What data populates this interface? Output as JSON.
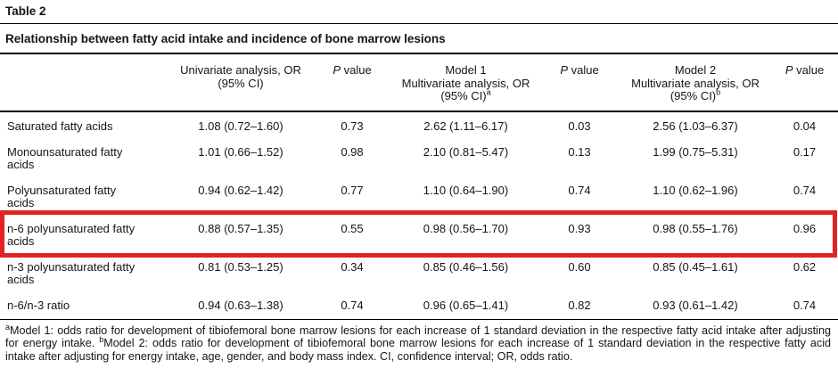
{
  "page": {
    "table_label": "Table 2",
    "title": "Relationship between fatty acid intake and incidence of bone marrow lesions"
  },
  "table": {
    "highlight_color": "#e32222",
    "columns": [
      {
        "type": "label",
        "name": "column-header-rowlabel",
        "lines": []
      },
      {
        "type": "multiline",
        "name": "column-header-univariate",
        "lines": [
          "Univariate analysis, OR",
          "(95% CI)"
        ]
      },
      {
        "type": "pvalue",
        "name": "column-header-pvalue-1",
        "italic": "P",
        "text": " value"
      },
      {
        "type": "multiline",
        "name": "column-header-model1",
        "lines": [
          "Model 1",
          "Multivariate analysis, OR",
          "(95% CI)"
        ],
        "sup": "a"
      },
      {
        "type": "pvalue",
        "name": "column-header-pvalue-2",
        "italic": "P",
        "text": " value"
      },
      {
        "type": "multiline",
        "name": "column-header-model2",
        "lines": [
          "Model 2",
          "Multivariate analysis, OR",
          "(95% CI)"
        ],
        "sup": "b"
      },
      {
        "type": "pvalue",
        "name": "column-header-pvalue-3",
        "italic": "P",
        "text": " value"
      }
    ],
    "rows": [
      {
        "label": "Saturated fatty acids",
        "values": [
          "1.08 (0.72–1.60)",
          "0.73",
          "2.62 (1.11–6.17)",
          "0.03",
          "2.56 (1.03–6.37)",
          "0.04"
        ],
        "highlighted": false
      },
      {
        "label": "Monounsaturated fatty acids",
        "values": [
          "1.01 (0.66–1.52)",
          "0.98",
          "2.10 (0.81–5.47)",
          "0.13",
          "1.99 (0.75–5.31)",
          "0.17"
        ],
        "highlighted": false
      },
      {
        "label": "Polyunsaturated fatty acids",
        "values": [
          "0.94 (0.62–1.42)",
          "0.77",
          "1.10 (0.64–1.90)",
          "0.74",
          "1.10 (0.62–1.96)",
          "0.74"
        ],
        "highlighted": false
      },
      {
        "label": "n-6 polyunsaturated fatty acids",
        "values": [
          "0.88 (0.57–1.35)",
          "0.55",
          "0.98 (0.56–1.70)",
          "0.93",
          "0.98 (0.55–1.76)",
          "0.96"
        ],
        "highlighted": true
      },
      {
        "label": "n-3 polyunsaturated fatty acids",
        "values": [
          "0.81 (0.53–1.25)",
          "0.34",
          "0.85 (0.46–1.56)",
          "0.60",
          "0.85 (0.45–1.61)",
          "0.62"
        ],
        "highlighted": false
      },
      {
        "label": "n-6/n-3 ratio",
        "values": [
          "0.94 (0.63–1.38)",
          "0.74",
          "0.96 (0.65–1.41)",
          "0.82",
          "0.93 (0.61–1.42)",
          "0.74"
        ],
        "highlighted": false
      }
    ],
    "footnote": {
      "parts": [
        {
          "sup": "a",
          "text": "Model 1: odds ratio for development of tibiofemoral bone marrow lesions for each increase of 1 standard deviation in the respective fatty acid intake after adjusting for energy intake. "
        },
        {
          "sup": "b",
          "text": "Model 2: odds ratio for development of tibiofemoral bone marrow lesions for each increase of 1 standard deviation in the respective fatty acid intake after adjusting for energy intake, age, gender, and body mass index. CI, confidence interval; OR, odds ratio."
        }
      ]
    }
  }
}
